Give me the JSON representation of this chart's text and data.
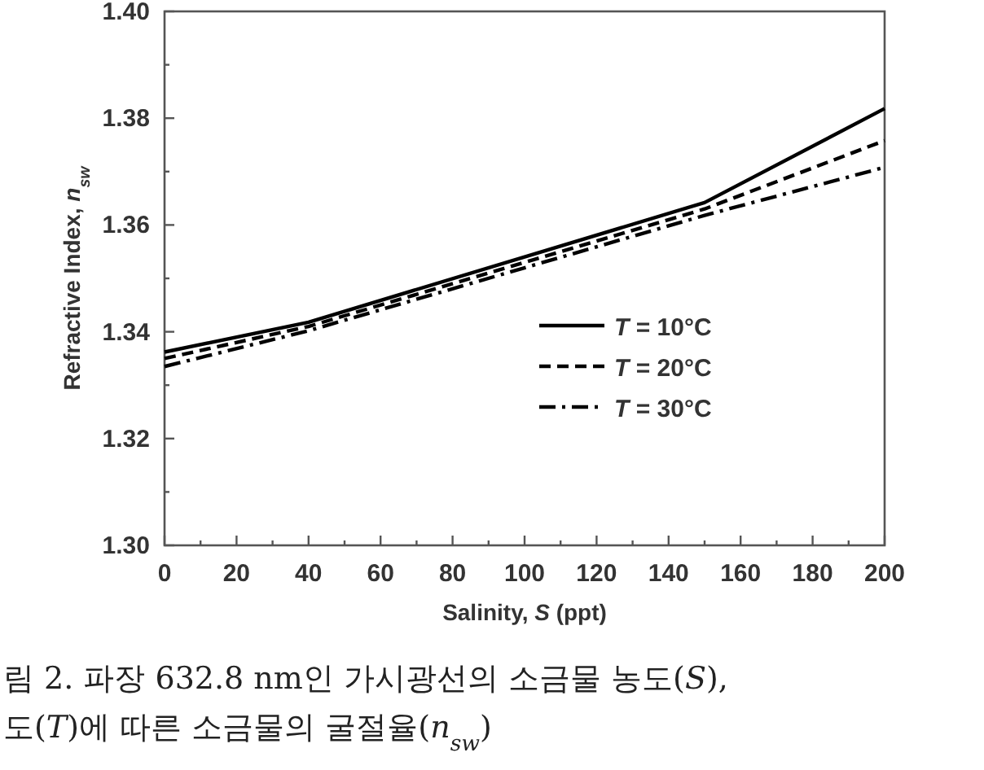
{
  "chart_data": {
    "type": "line",
    "xlabel": "Salinity, *S* (ppt)",
    "ylabel": "Refractive Index, *n*$_{sw}$",
    "x": [
      0,
      40,
      150,
      200
    ],
    "series": [
      {
        "name": "*T* = 10°C",
        "color": "#000000",
        "line_style": "solid",
        "values": [
          1.3362,
          1.3418,
          1.3642,
          1.3818
        ]
      },
      {
        "name": "*T* = 20°C",
        "color": "#000000",
        "line_style": "dashed",
        "values": [
          1.335,
          1.341,
          1.363,
          1.3758
        ]
      },
      {
        "name": "*T* = 30°C",
        "color": "#000000",
        "line_style": "dashdot",
        "values": [
          1.3335,
          1.3402,
          1.3618,
          1.3708
        ]
      }
    ],
    "xlim": [
      0,
      200
    ],
    "xticks": [
      0,
      20,
      40,
      60,
      80,
      100,
      120,
      140,
      160,
      180,
      200
    ],
    "ylim": [
      1.3,
      1.4
    ],
    "yticks": [
      {
        "value": 1.3,
        "label": "1.30"
      },
      {
        "value": 1.32,
        "label": "1.32"
      },
      {
        "value": 1.34,
        "label": "1.34"
      },
      {
        "value": 1.36,
        "label": "1.36"
      },
      {
        "value": 1.38,
        "label": "1.38"
      },
      {
        "value": 1.4,
        "label": "1.40"
      }
    ],
    "grid": false,
    "legend": "right",
    "marker": "none",
    "annotations": [
      "림 2. 파장 632.8 nm인 가시광선의 소금물 농도(*S*),",
      "도(*T*)에 따른 소금물의 굴절율(*n*$_{sw}$)"
    ]
  }
}
